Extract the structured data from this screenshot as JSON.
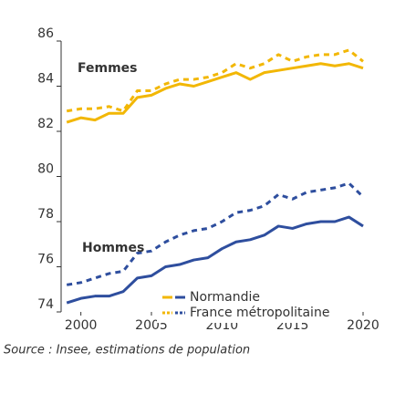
{
  "chart_data": {
    "type": "line",
    "x": [
      1999,
      2000,
      2001,
      2002,
      2003,
      2004,
      2005,
      2006,
      2007,
      2008,
      2009,
      2010,
      2011,
      2012,
      2013,
      2014,
      2015,
      2016,
      2017,
      2018,
      2019,
      2020
    ],
    "xlim": [
      1998.6,
      2020
    ],
    "xticks": [
      2000,
      2005,
      2010,
      2015,
      2020
    ],
    "ylim": [
      74,
      86
    ],
    "yticks": [
      74,
      76,
      78,
      80,
      82,
      84,
      86
    ],
    "annotations": [
      {
        "text": "Femmes",
        "color": "#f2b705"
      },
      {
        "text": "Hommes",
        "color": "#2e4e9e"
      }
    ],
    "legend": [
      {
        "label": "Normandie",
        "dashed": false
      },
      {
        "label": "France métropolitaine",
        "dashed": true
      }
    ],
    "series": [
      {
        "group": 0,
        "legend": 0,
        "color": "#f2b705",
        "values": [
          82.4,
          82.6,
          82.5,
          82.8,
          82.8,
          83.5,
          83.6,
          83.9,
          84.1,
          84.0,
          84.2,
          84.4,
          84.6,
          84.3,
          84.6,
          84.7,
          84.8,
          84.9,
          85.0,
          84.9,
          85.0,
          84.8
        ]
      },
      {
        "group": 0,
        "legend": 1,
        "color": "#f2b705",
        "values": [
          82.9,
          83.0,
          83.0,
          83.1,
          82.9,
          83.8,
          83.8,
          84.1,
          84.3,
          84.3,
          84.4,
          84.6,
          85.0,
          84.8,
          85.0,
          85.4,
          85.1,
          85.3,
          85.4,
          85.4,
          85.6,
          85.1
        ]
      },
      {
        "group": 1,
        "legend": 0,
        "color": "#2e4e9e",
        "values": [
          74.4,
          74.6,
          74.7,
          74.7,
          74.9,
          75.5,
          75.6,
          76.0,
          76.1,
          76.3,
          76.4,
          76.8,
          77.1,
          77.2,
          77.4,
          77.8,
          77.7,
          77.9,
          78.0,
          78.0,
          78.2,
          77.8
        ]
      },
      {
        "group": 1,
        "legend": 1,
        "color": "#2e4e9e",
        "values": [
          75.2,
          75.3,
          75.5,
          75.7,
          75.8,
          76.6,
          76.7,
          77.1,
          77.4,
          77.6,
          77.7,
          78.0,
          78.4,
          78.5,
          78.7,
          79.2,
          79.0,
          79.3,
          79.4,
          79.5,
          79.7,
          79.1
        ]
      }
    ],
    "source": "Source : Insee, estimations de population"
  }
}
